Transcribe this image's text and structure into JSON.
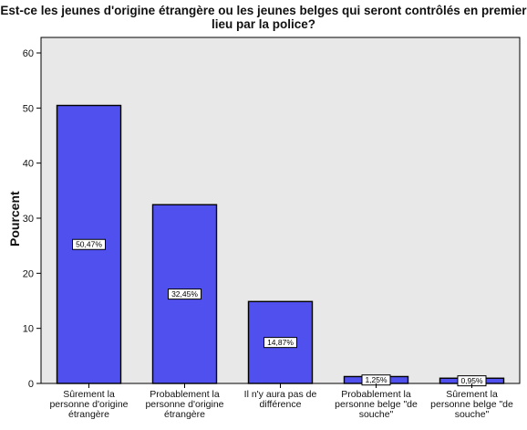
{
  "chart_data": {
    "type": "bar",
    "title": "Est-ce les jeunes d'origine étrangère ou les jeunes belges qui seront contrôlés en premier lieu par la police?",
    "title_lines": [
      "Est-ce les jeunes d'origine étrangère ou les jeunes belges qui seront contrôlés en premier",
      "lieu par la police?"
    ],
    "xlabel": "",
    "ylabel": "Pourcent",
    "ylim": [
      0,
      60
    ],
    "yticks": [
      0,
      10,
      20,
      30,
      40,
      50,
      60
    ],
    "grid": false,
    "categories": [
      [
        "Sûrement la",
        "personne d'origine",
        "étrangère"
      ],
      [
        "Probablement la",
        "personne d'origine",
        "étrangère"
      ],
      [
        "Il n'y aura pas de",
        "différence"
      ],
      [
        "Probablement la",
        "personne belge \"de",
        "souche\""
      ],
      [
        "Sûrement la",
        "personne belge \"de",
        "souche\""
      ]
    ],
    "values": [
      50.47,
      32.45,
      14.87,
      1.25,
      0.95
    ],
    "data_labels": [
      "50,47%",
      "32,45%",
      "14,87%",
      "1,25%",
      "0,95%"
    ],
    "bar_color": "#5050ee",
    "background": "#e8e8e8"
  }
}
